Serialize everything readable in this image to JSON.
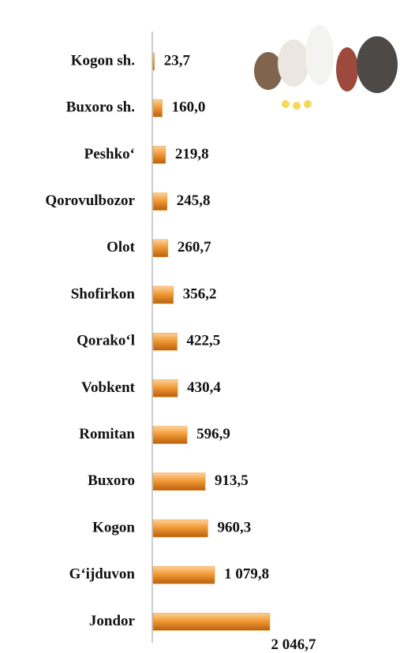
{
  "chart_data": {
    "type": "bar",
    "orientation": "horizontal",
    "categories": [
      "Kogon sh.",
      "Buxoro sh.",
      "Peshko‘",
      "Qorovulbozor",
      "Olot",
      "Shofirkon",
      "Qorako‘l",
      "Vobkent",
      "Romitan",
      "Buxoro",
      "Kogon",
      "G‘ijduvon",
      "Jondor"
    ],
    "values": [
      23.7,
      160.0,
      219.8,
      245.8,
      260.7,
      356.2,
      422.5,
      430.4,
      596.9,
      913.5,
      960.3,
      1079.8,
      2046.7
    ],
    "value_labels": [
      "23,7",
      "160,0",
      "219,8",
      "245,8",
      "260,7",
      "356,2",
      "422,5",
      "430,4",
      "596,9",
      "913,5",
      "960,3",
      "1 079,8",
      "2 046,7"
    ],
    "color": "#f0962e"
  }
}
